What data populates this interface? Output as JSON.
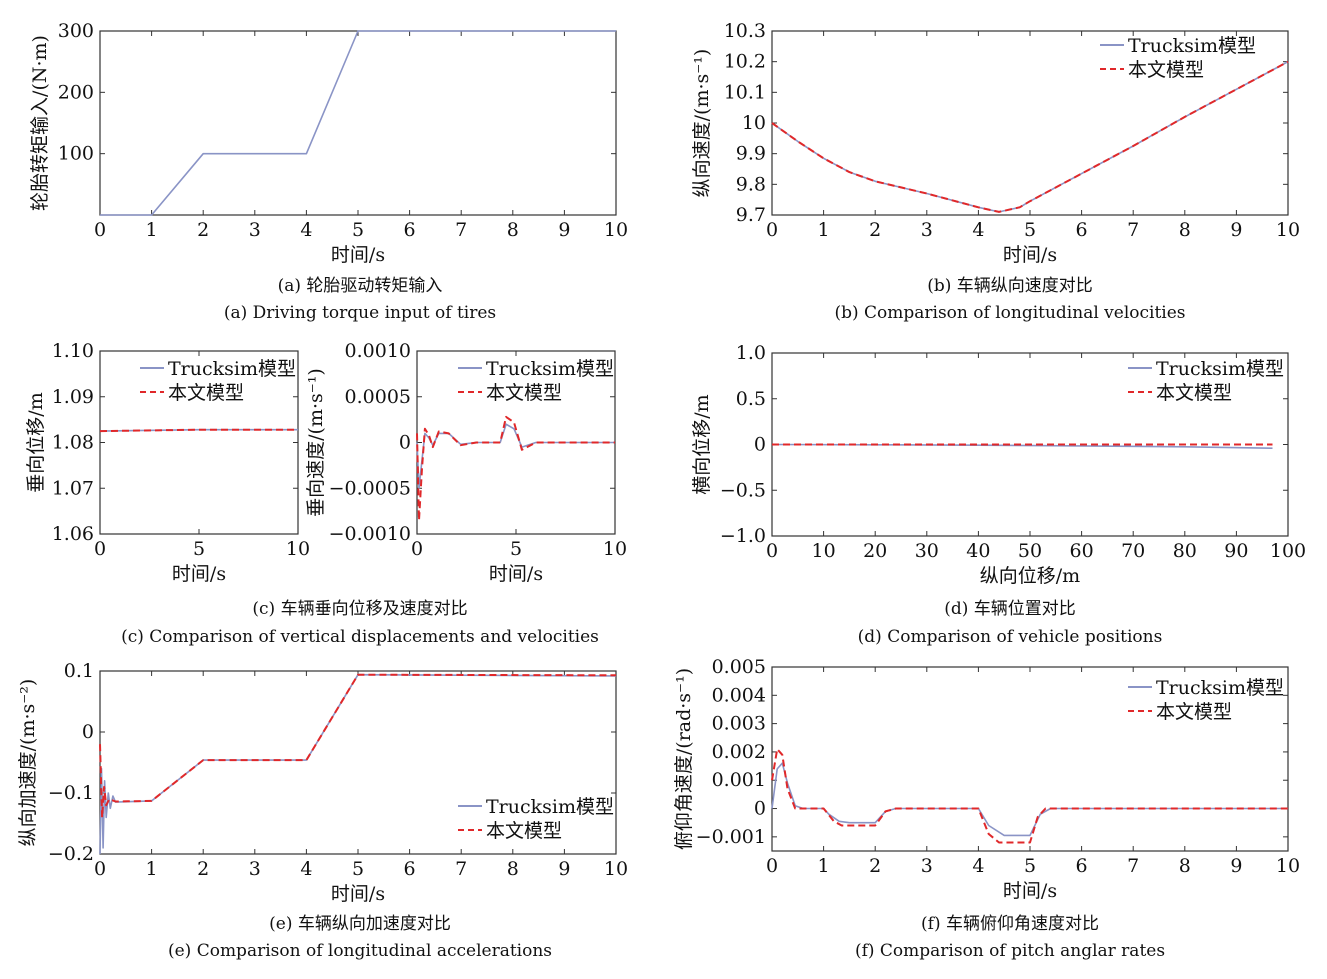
{
  "colors": {
    "trucksim": "#8a94c6",
    "model": "#e0282a",
    "axis": "#333333"
  },
  "charts": [
    {
      "key": "a",
      "chart_data": {
        "type": "line",
        "xlabel": "时间/s",
        "ylabel": "轮胎转矩输入/(N·m)",
        "xlim": [
          0,
          10
        ],
        "ylim": [
          0,
          300
        ],
        "xticks": [
          "0",
          "1",
          "2",
          "3",
          "4",
          "5",
          "6",
          "7",
          "8",
          "9",
          "10"
        ],
        "yticks": [
          "100",
          "200",
          "300"
        ],
        "legend": [],
        "series": [
          {
            "values": [
              [
                0,
                0
              ],
              [
                1,
                0
              ],
              [
                2,
                100
              ],
              [
                4,
                100
              ],
              [
                5,
                300
              ],
              [
                10,
                300
              ]
            ]
          }
        ]
      },
      "caption_cn": "(a) 轮胎驱动转矩输入",
      "caption_en": "(a) Driving torque input of tires"
    },
    {
      "key": "b",
      "chart_data": {
        "type": "line",
        "xlabel": "时间/s",
        "ylabel": "纵向速度/(m·s⁻¹)",
        "xlim": [
          0,
          10
        ],
        "ylim": [
          9.7,
          10.3
        ],
        "xticks": [
          "0",
          "1",
          "2",
          "3",
          "4",
          "5",
          "6",
          "7",
          "8",
          "9",
          "10"
        ],
        "yticks": [
          "9.7",
          "9.8",
          "9.9",
          "10",
          "10.1",
          "10.2",
          "10.3"
        ],
        "legend": [
          "Trucksim模型",
          "本文模型"
        ],
        "series": [
          {
            "name": "Trucksim模型",
            "values": [
              [
                0,
                10.0
              ],
              [
                0.5,
                9.94
              ],
              [
                1,
                9.885
              ],
              [
                1.5,
                9.84
              ],
              [
                2,
                9.81
              ],
              [
                3,
                9.77
              ],
              [
                4,
                9.725
              ],
              [
                4.4,
                9.71
              ],
              [
                4.8,
                9.725
              ],
              [
                5,
                9.745
              ],
              [
                6,
                9.835
              ],
              [
                7,
                9.925
              ],
              [
                8,
                10.02
              ],
              [
                9,
                10.11
              ],
              [
                10,
                10.2
              ]
            ]
          },
          {
            "name": "本文模型",
            "values": [
              [
                0,
                10.0
              ],
              [
                0.5,
                9.94
              ],
              [
                1,
                9.885
              ],
              [
                1.5,
                9.84
              ],
              [
                2,
                9.81
              ],
              [
                3,
                9.77
              ],
              [
                4,
                9.725
              ],
              [
                4.4,
                9.71
              ],
              [
                4.8,
                9.725
              ],
              [
                5,
                9.745
              ],
              [
                6,
                9.835
              ],
              [
                7,
                9.925
              ],
              [
                8,
                10.02
              ],
              [
                9,
                10.11
              ],
              [
                10,
                10.2
              ]
            ]
          }
        ]
      },
      "caption_cn": "(b) 车辆纵向速度对比",
      "caption_en": "(b) Comparison of longitudinal velocities"
    },
    {
      "key": "c1",
      "chart_data": {
        "type": "line",
        "xlabel": "时间/s",
        "ylabel": "垂向位移/m",
        "xlim": [
          0,
          10
        ],
        "ylim": [
          1.06,
          1.1
        ],
        "xticks": [
          "0",
          "5",
          "10"
        ],
        "yticks": [
          "1.06",
          "1.07",
          "1.08",
          "1.09",
          "1.10"
        ],
        "legend": [
          "Trucksim模型",
          "本文模型"
        ],
        "series": [
          {
            "name": "Trucksim模型",
            "values": [
              [
                0,
                1.0825
              ],
              [
                5,
                1.0828
              ],
              [
                10,
                1.0828
              ]
            ]
          },
          {
            "name": "本文模型",
            "values": [
              [
                0,
                1.0825
              ],
              [
                5,
                1.0828
              ],
              [
                10,
                1.0828
              ]
            ]
          }
        ]
      }
    },
    {
      "key": "c2",
      "chart_data": {
        "type": "line",
        "xlabel": "时间/s",
        "ylabel": "垂向速度/(m·s⁻¹)",
        "xlim": [
          0,
          10
        ],
        "ylim": [
          -0.001,
          0.001
        ],
        "xticks": [
          "0",
          "5",
          "10"
        ],
        "yticks": [
          "−0.0010",
          "−0.0005",
          "0",
          "0.0005",
          "0.0010"
        ],
        "legend": [
          "Trucksim模型",
          "本文模型"
        ],
        "series": [
          {
            "name": "Trucksim模型",
            "values": [
              [
                0,
                0
              ],
              [
                0.1,
                -0.0005
              ],
              [
                0.25,
                -0.0002
              ],
              [
                0.4,
                0.0001
              ],
              [
                0.6,
                5e-05
              ],
              [
                0.8,
                -3e-05
              ],
              [
                1.1,
                0.0001
              ],
              [
                1.6,
                0.0001
              ],
              [
                2.2,
                -2e-05
              ],
              [
                3.0,
                0.0
              ],
              [
                4.2,
                0.0
              ],
              [
                4.5,
                0.0002
              ],
              [
                4.9,
                0.00015
              ],
              [
                5.3,
                -5e-05
              ],
              [
                6,
                0
              ],
              [
                10,
                0
              ]
            ]
          },
          {
            "name": "本文模型",
            "values": [
              [
                0,
                0.0001
              ],
              [
                0.1,
                -0.00085
              ],
              [
                0.25,
                -0.0003
              ],
              [
                0.4,
                0.00015
              ],
              [
                0.6,
                8e-05
              ],
              [
                0.8,
                -5e-05
              ],
              [
                1.1,
                0.00012
              ],
              [
                1.6,
                0.0001
              ],
              [
                2.2,
                -3e-05
              ],
              [
                3.0,
                0.0
              ],
              [
                4.2,
                0.0
              ],
              [
                4.5,
                0.00028
              ],
              [
                4.9,
                0.00022
              ],
              [
                5.3,
                -8e-05
              ],
              [
                6,
                0
              ],
              [
                10,
                0
              ]
            ]
          }
        ]
      },
      "caption_cn": "(c) 车辆垂向位移及速度对比",
      "caption_en": "(c) Comparison of vertical  displacements and velocities"
    },
    {
      "key": "d",
      "chart_data": {
        "type": "line",
        "xlabel": "纵向位移/m",
        "ylabel": "横向位移/m",
        "xlim": [
          0,
          100
        ],
        "ylim": [
          -1.0,
          1.0
        ],
        "xticks": [
          "0",
          "10",
          "20",
          "30",
          "40",
          "50",
          "60",
          "70",
          "80",
          "90",
          "100"
        ],
        "yticks": [
          "−1.0",
          "−0.5",
          "0",
          "0.5",
          "1.0"
        ],
        "legend": [
          "Trucksim模型",
          "本文模型"
        ],
        "series": [
          {
            "name": "Trucksim模型",
            "values": [
              [
                0,
                0
              ],
              [
                20,
                -0.003
              ],
              [
                40,
                -0.008
              ],
              [
                60,
                -0.015
              ],
              [
                80,
                -0.025
              ],
              [
                97,
                -0.04
              ]
            ]
          },
          {
            "name": "本文模型",
            "values": [
              [
                0,
                0
              ],
              [
                97,
                0
              ]
            ]
          }
        ]
      },
      "caption_cn": "(d) 车辆位置对比",
      "caption_en": "(d) Comparison of vehicle positions"
    },
    {
      "key": "e",
      "chart_data": {
        "type": "line",
        "xlabel": "时间/s",
        "ylabel": "纵向加速度/(m·s⁻²)",
        "xlim": [
          0,
          10
        ],
        "ylim": [
          -0.2,
          0.1
        ],
        "xticks": [
          "0",
          "1",
          "2",
          "3",
          "4",
          "5",
          "6",
          "7",
          "8",
          "9",
          "10"
        ],
        "yticks": [
          "−0.2",
          "−0.1",
          "0",
          "0.1"
        ],
        "legend": [
          "Trucksim模型",
          "本文模型"
        ],
        "series": [
          {
            "name": "Trucksim模型",
            "values": [
              [
                0,
                -0.2
              ],
              [
                0.03,
                -0.06
              ],
              [
                0.06,
                -0.19
              ],
              [
                0.09,
                -0.08
              ],
              [
                0.12,
                -0.14
              ],
              [
                0.16,
                -0.1
              ],
              [
                0.2,
                -0.125
              ],
              [
                0.25,
                -0.105
              ],
              [
                0.3,
                -0.115
              ],
              [
                1,
                -0.113
              ],
              [
                2,
                -0.046
              ],
              [
                4,
                -0.046
              ],
              [
                5,
                0.094
              ],
              [
                10,
                0.092
              ]
            ]
          },
          {
            "name": "本文模型",
            "values": [
              [
                0,
                -0.02
              ],
              [
                0.04,
                -0.14
              ],
              [
                0.08,
                -0.09
              ],
              [
                0.12,
                -0.12
              ],
              [
                0.18,
                -0.11
              ],
              [
                0.3,
                -0.114
              ],
              [
                1,
                -0.113
              ],
              [
                2,
                -0.046
              ],
              [
                4,
                -0.046
              ],
              [
                5,
                0.094
              ],
              [
                10,
                0.093
              ]
            ]
          }
        ]
      },
      "caption_cn": "(e) 车辆纵向加速度对比",
      "caption_en": "(e) Comparison of longitudinal accelerations"
    },
    {
      "key": "f",
      "chart_data": {
        "type": "line",
        "xlabel": "时间/s",
        "ylabel": "俯仰角速度/(rad·s⁻¹)",
        "xlim": [
          0,
          10
        ],
        "ylim": [
          -0.0015,
          0.005
        ],
        "xticks": [
          "0",
          "1",
          "2",
          "3",
          "4",
          "5",
          "6",
          "7",
          "8",
          "9",
          "10"
        ],
        "yticks": [
          "−0.001",
          "0",
          "0.001",
          "0.002",
          "0.003",
          "0.004",
          "0.005"
        ],
        "legend": [
          "Trucksim模型",
          "本文模型"
        ],
        "series": [
          {
            "name": "Trucksim模型",
            "values": [
              [
                0,
                0
              ],
              [
                0.1,
                0.0014
              ],
              [
                0.2,
                0.0016
              ],
              [
                0.3,
                0.0009
              ],
              [
                0.45,
                0.0001
              ],
              [
                0.6,
                0
              ],
              [
                1.0,
                0
              ],
              [
                1.1,
                -0.0002
              ],
              [
                1.3,
                -0.00045
              ],
              [
                1.5,
                -0.0005
              ],
              [
                2.0,
                -0.0005
              ],
              [
                2.2,
                -0.0001
              ],
              [
                2.4,
                0
              ],
              [
                4.0,
                0
              ],
              [
                4.2,
                -0.0006
              ],
              [
                4.5,
                -0.00095
              ],
              [
                5.0,
                -0.00095
              ],
              [
                5.2,
                -0.0002
              ],
              [
                5.4,
                0
              ],
              [
                10,
                0
              ]
            ]
          },
          {
            "name": "本文模型",
            "values": [
              [
                0,
                0.001
              ],
              [
                0.1,
                0.0021
              ],
              [
                0.2,
                0.0019
              ],
              [
                0.3,
                0.0007
              ],
              [
                0.45,
                0
              ],
              [
                1.0,
                0
              ],
              [
                1.2,
                -0.00045
              ],
              [
                1.35,
                -0.0006
              ],
              [
                2.0,
                -0.0006
              ],
              [
                2.2,
                -0.0001
              ],
              [
                2.4,
                0
              ],
              [
                4.0,
                0
              ],
              [
                4.2,
                -0.0009
              ],
              [
                4.4,
                -0.0012
              ],
              [
                5.0,
                -0.0012
              ],
              [
                5.15,
                -0.0003
              ],
              [
                5.3,
                0
              ],
              [
                10,
                0
              ]
            ]
          }
        ]
      },
      "caption_cn": "(f) 车辆俯仰角速度对比",
      "caption_en": "(f) Comparison of pitch anglar rates"
    }
  ]
}
